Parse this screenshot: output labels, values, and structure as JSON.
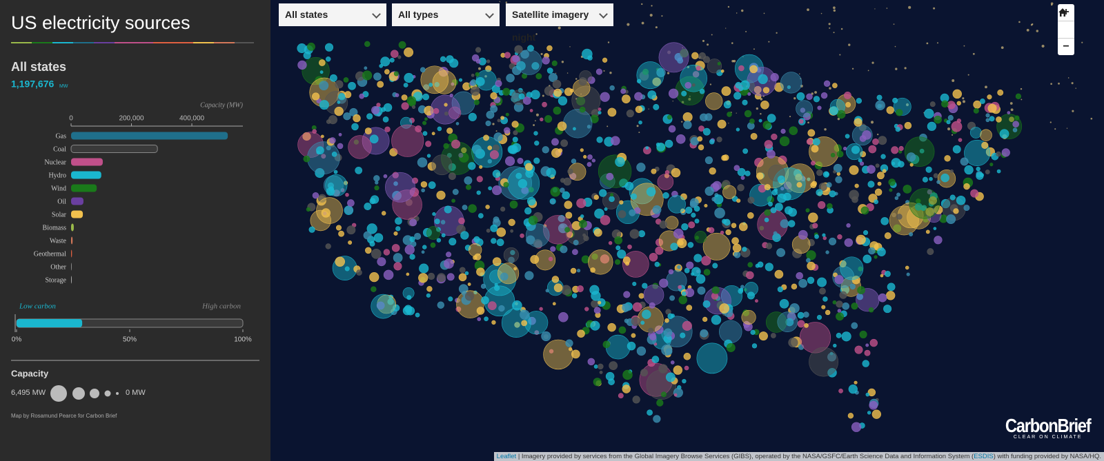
{
  "sidebar": {
    "title": "US electricity sources",
    "region": "All states",
    "total": "1,197,676",
    "total_unit": "MW"
  },
  "chart_data": [
    {
      "type": "bar",
      "orientation": "horizontal",
      "axis_label": "Capacity (MW)",
      "categories": [
        "Gas",
        "Coal",
        "Nuclear",
        "Hydro",
        "Wind",
        "Oil",
        "Solar",
        "Biomass",
        "Waste",
        "Geothermal",
        "Other",
        "Storage"
      ],
      "values": [
        519000,
        286000,
        105000,
        100000,
        85000,
        41000,
        39000,
        9000,
        5000,
        3000,
        1000,
        500
      ],
      "colors": [
        "#1f6f8b",
        "#3a3a3a",
        "#c0508a",
        "#1ab7cf",
        "#1a7a1a",
        "#6a3fa0",
        "#f2c14e",
        "#9aba4a",
        "#d4785a",
        "#e06040",
        "#888888",
        "#aaaaaa"
      ],
      "xlim": [
        0,
        569000
      ],
      "xticks": [
        0,
        {
          "value": 200000,
          "label": "200,000"
        },
        {
          "value": 400000,
          "label": "400,000"
        }
      ]
    },
    {
      "type": "bar",
      "orientation": "horizontal",
      "annotations": [
        "Low carbon",
        "High carbon"
      ],
      "values": [
        29
      ],
      "color": "#1ab7cf",
      "xlim": [
        0,
        100
      ],
      "xticks": [
        {
          "value": 0,
          "label": "0%"
        },
        {
          "value": 50,
          "label": "50%"
        },
        {
          "value": 100,
          "label": "100%"
        }
      ]
    }
  ],
  "capacity_legend": {
    "title": "Capacity",
    "max": "6,495 MW",
    "min": "0 MW"
  },
  "credit": "Map by Rosamund Pearce for Carbon Brief",
  "controls": {
    "state": "All states",
    "type": "All types",
    "basemap": "Satellite imagery night"
  },
  "zoom": {
    "in": "+",
    "out": "−"
  },
  "logo": {
    "name": "CarbonBrief",
    "tagline": "CLEAR ON CLIMATE"
  },
  "attribution": {
    "link": "Leaflet",
    "text1": " | Imagery provided by services from the Global Imagery Browse Services (GIBS), operated by the NASA/GSFC/Earth Science Data and Information System (",
    "link2": "ESDIS",
    "text2": ") with funding provided by NASA/HQ."
  }
}
